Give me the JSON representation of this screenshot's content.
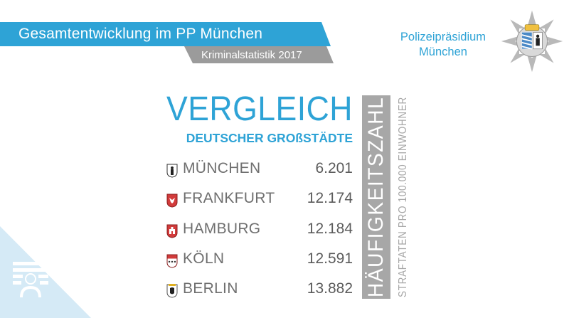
{
  "header": {
    "title": "Gesamtentwicklung im PP München",
    "subtitle": "Kriminalstatistik  2017"
  },
  "organization": {
    "line1": "Polizeipräsidium",
    "line2": "München"
  },
  "main": {
    "heading": "VERGLEICH",
    "subheading": "DEUTSCHER GROßSTÄDTE",
    "cities": [
      {
        "name": "MÜNCHEN",
        "value": "6.201",
        "crest": "munich-crest-icon"
      },
      {
        "name": "FRANKFURT",
        "value": "12.174",
        "crest": "frankfurt-crest-icon"
      },
      {
        "name": "HAMBURG",
        "value": "12.184",
        "crest": "hamburg-crest-icon"
      },
      {
        "name": "KÖLN",
        "value": "12.591",
        "crest": "cologne-crest-icon"
      },
      {
        "name": "BERLIN",
        "value": "13.882",
        "crest": "berlin-crest-icon"
      }
    ],
    "vertical_title": "HÄUFIGKEITSZAHL",
    "vertical_subtitle": "STRAFTATEN PRO 100.000 EINWOHNER"
  },
  "colors": {
    "accent": "#2ea3d6",
    "grey": "#9b9b9b",
    "corner": "#d5eaf6"
  }
}
